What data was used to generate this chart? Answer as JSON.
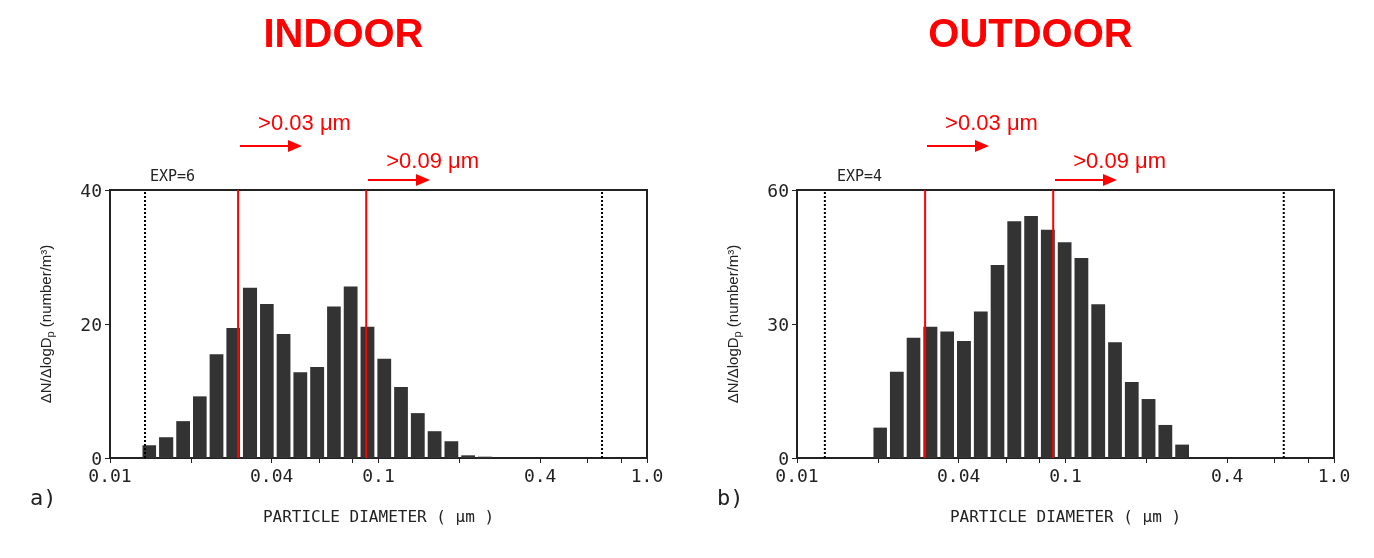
{
  "chart_data": [
    {
      "type": "histogram",
      "title": "INDOOR",
      "xlabel": "PARTICLE DIAMETER ( μm )",
      "ylabel": "ΔN/ΔlogD$_{p}$ (number/m³)",
      "annotations": [
        "a)",
        "EXP=6"
      ],
      "bins": [
        0.0131,
        0.0151,
        0.0175,
        0.0202,
        0.0233,
        0.0269,
        0.031,
        0.0359,
        0.0414,
        0.0478,
        0.0552,
        0.0638,
        0.0736,
        0.085,
        0.0982,
        0.1134,
        0.1309,
        0.1512,
        0.1746,
        0.2016,
        0.2328,
        0.2689
      ],
      "values": [
        1.9,
        3.1,
        5.5,
        9.2,
        15.5,
        19.4,
        25.4,
        23,
        18.5,
        12.8,
        13.6,
        22.6,
        25.6,
        19.6,
        14.8,
        10.6,
        6.7,
        4,
        2.5,
        0.4,
        0.2
      ],
      "color": "#333333",
      "log": "x",
      "grid": false,
      "xlim": [
        0.01,
        1
      ],
      "xticks": [
        0.01,
        {
          "value": 0.02,
          "label": null
        },
        0.04,
        {
          "value": 0.06,
          "label": null
        },
        {
          "value": 0.08,
          "label": null
        },
        0.1,
        {
          "value": 0.2,
          "label": null
        },
        0.4,
        {
          "value": 0.6,
          "label": null
        },
        {
          "value": 0.8,
          "label": null
        },
        {
          "value": 1,
          "label": "1.0"
        }
      ],
      "ylim": [
        0,
        40
      ],
      "yticks": [
        0,
        20,
        40
      ],
      "ref_lines": [
        {
          "axis": "x",
          "value": 0.0135,
          "color": "#000000",
          "line_style": "dotted"
        },
        {
          "axis": "x",
          "value": 0.68,
          "color": "#000000",
          "line_style": "dotted"
        },
        {
          "axis": "x",
          "value": 0.03,
          "label": ">0.03 μm",
          "color": "#ff0000",
          "line_style": "solid"
        },
        {
          "axis": "x",
          "value": 0.09,
          "label": ">0.09 μm",
          "color": "#ff0000",
          "line_style": "solid"
        }
      ]
    },
    {
      "type": "histogram",
      "title": "OUTDOOR",
      "xlabel": "PARTICLE DIAMETER ( μm )",
      "ylabel": "ΔN/ΔlogD$_{p}$ (number/m³)",
      "annotations": [
        "b)",
        "EXP=4"
      ],
      "bins": [
        0.0191,
        0.022,
        0.0254,
        0.0293,
        0.0339,
        0.0391,
        0.0452,
        0.0522,
        0.0602,
        0.0696,
        0.0803,
        0.0928,
        0.1071,
        0.1237,
        0.1429,
        0.165,
        0.1905,
        0.22,
        0.2541,
        0.2934
      ],
      "values": [
        6.8,
        19.3,
        26.9,
        29.4,
        28.3,
        26.2,
        32.8,
        43.2,
        53,
        54.2,
        51.1,
        48.3,
        44.8,
        34.4,
        25.9,
        17,
        13.2,
        7.4,
        3
      ],
      "color": "#333333",
      "log": "x",
      "grid": false,
      "xlim": [
        0.01,
        1
      ],
      "xticks": [
        0.01,
        {
          "value": 0.02,
          "label": null
        },
        0.04,
        {
          "value": 0.06,
          "label": null
        },
        {
          "value": 0.08,
          "label": null
        },
        0.1,
        {
          "value": 0.2,
          "label": null
        },
        0.4,
        {
          "value": 0.6,
          "label": null
        },
        {
          "value": 0.8,
          "label": null
        },
        {
          "value": 1,
          "label": "1.0"
        }
      ],
      "ylim": [
        0,
        60
      ],
      "yticks": [
        0,
        30,
        60
      ],
      "ref_lines": [
        {
          "axis": "x",
          "value": 0.0127,
          "color": "#000000",
          "line_style": "dotted"
        },
        {
          "axis": "x",
          "value": 0.65,
          "color": "#000000",
          "line_style": "dotted"
        },
        {
          "axis": "x",
          "value": 0.03,
          "label": ">0.03 μm",
          "color": "#ff0000",
          "line_style": "solid"
        },
        {
          "axis": "x",
          "value": 0.09,
          "label": ">0.09 μm",
          "color": "#ff0000",
          "line_style": "solid"
        }
      ]
    }
  ]
}
